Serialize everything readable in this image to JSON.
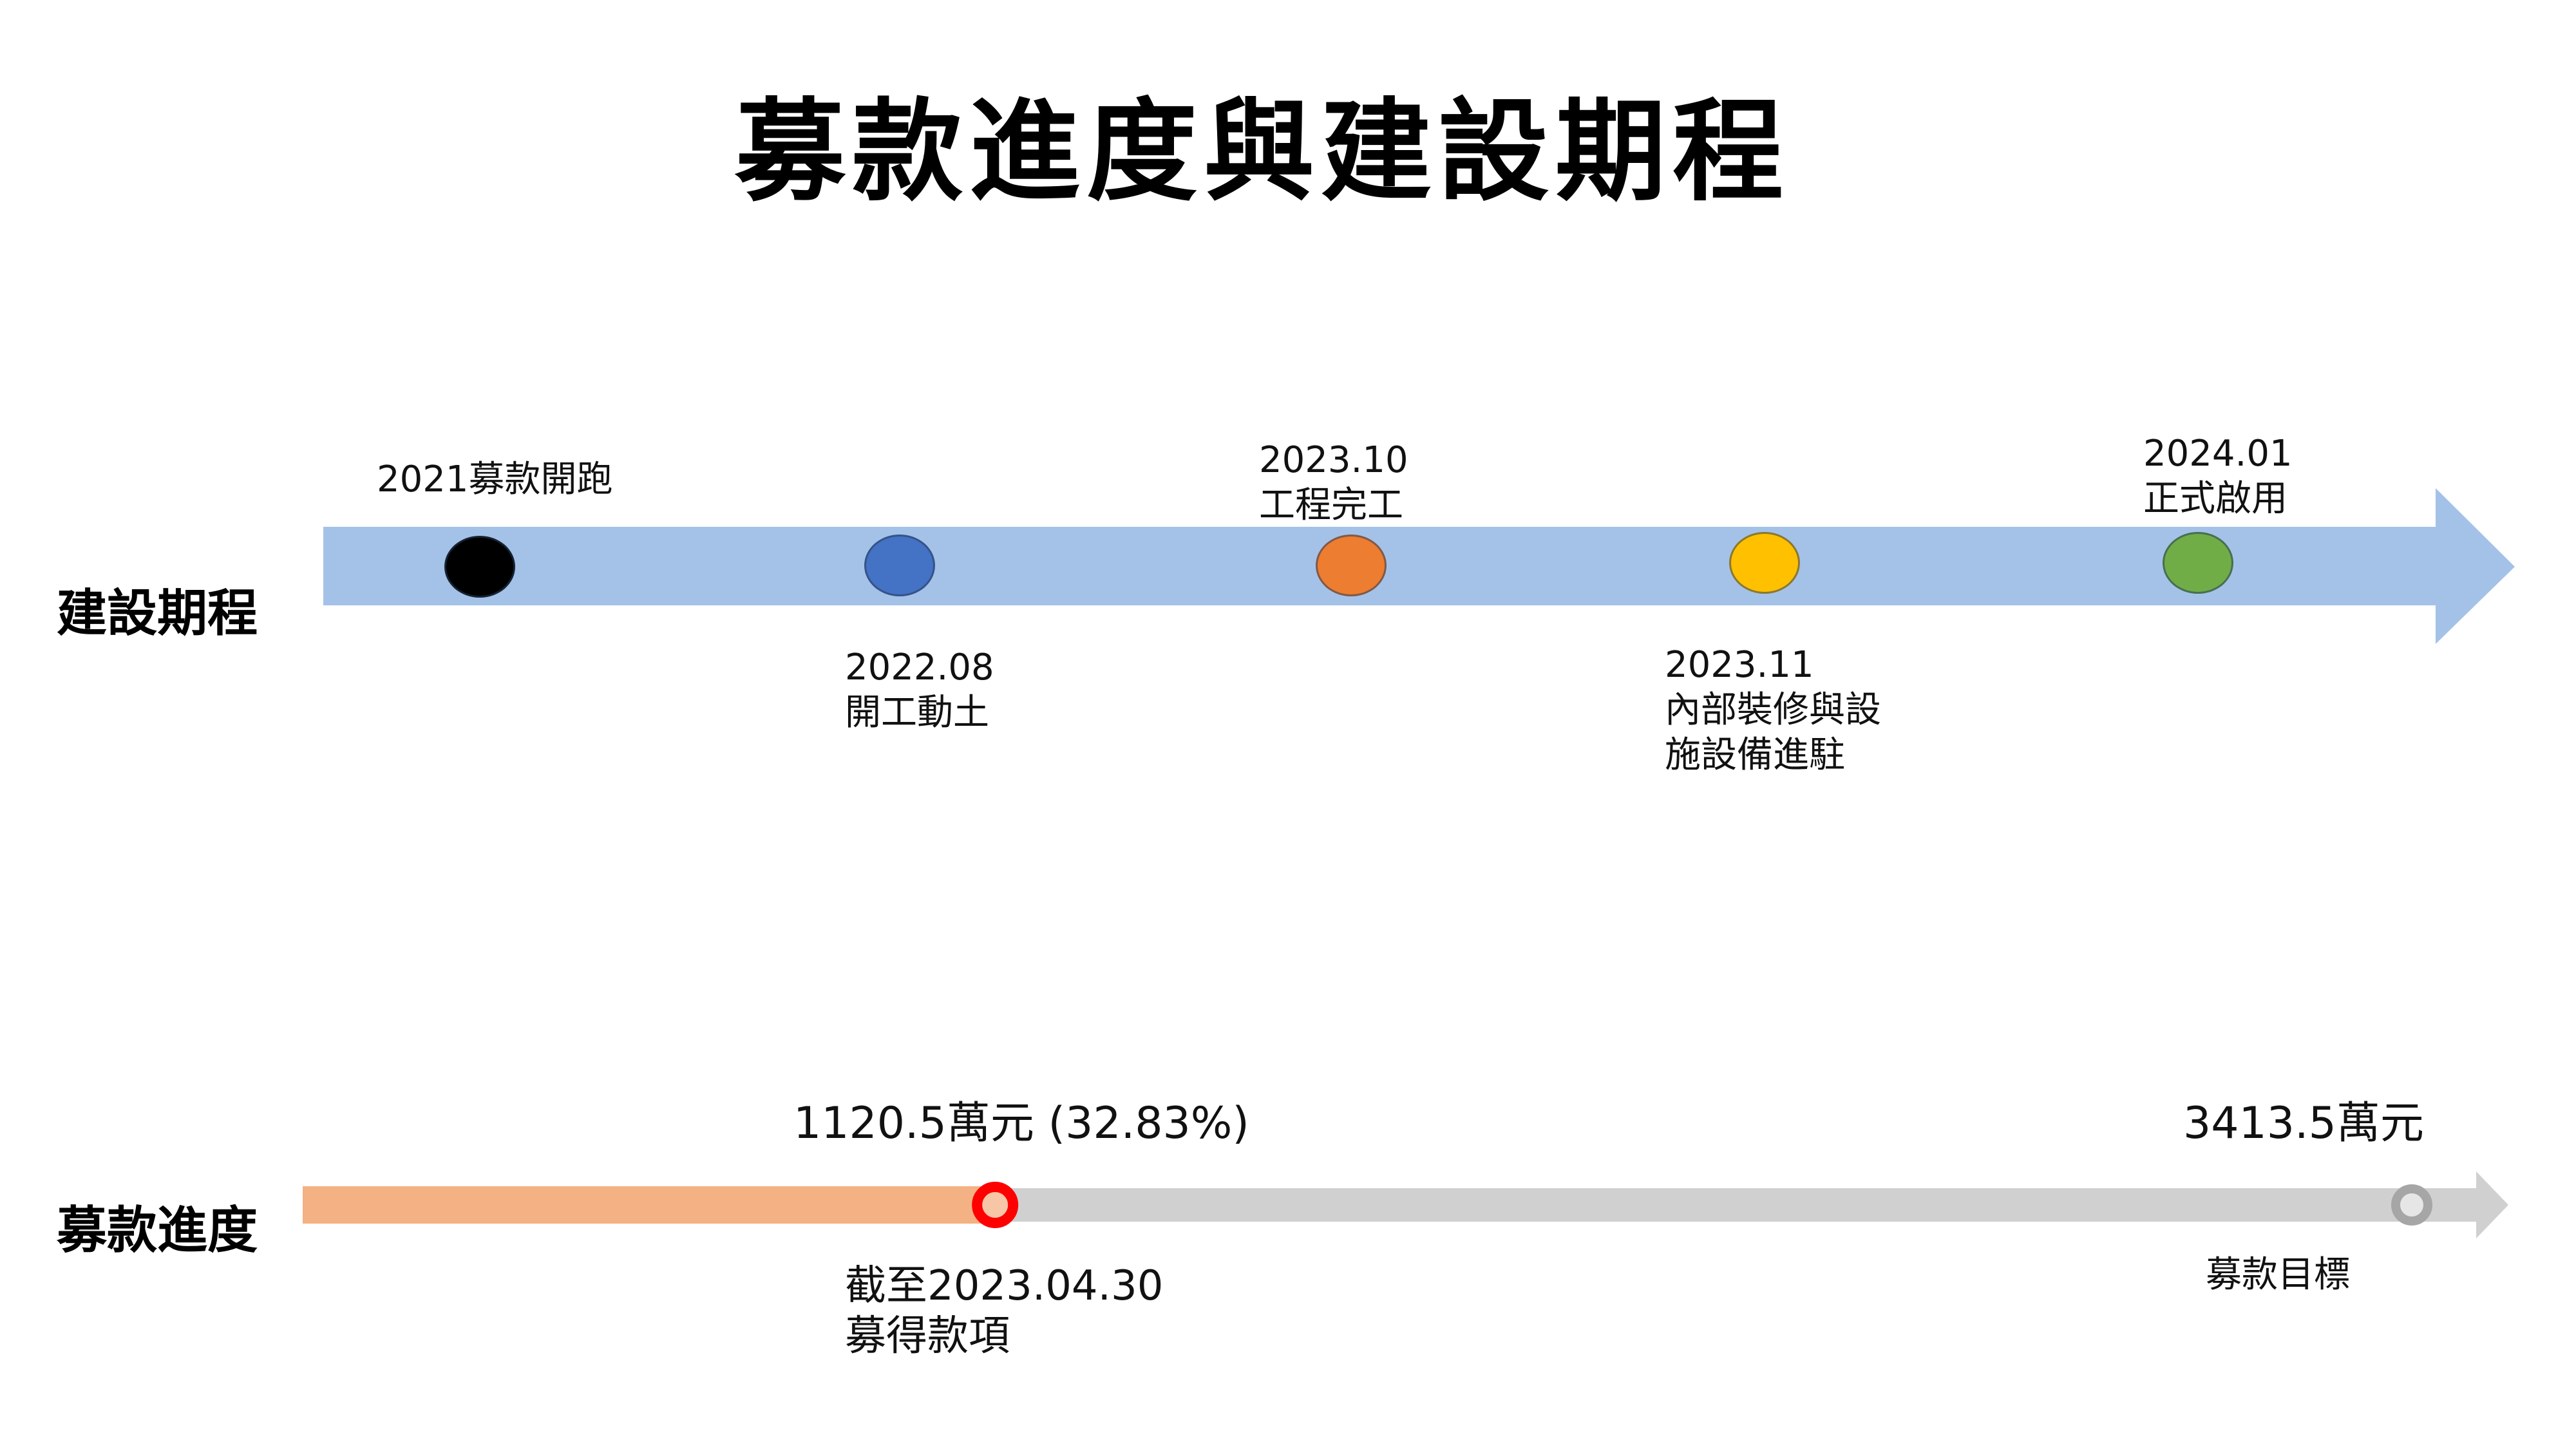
{
  "title": "募款進度與建設期程",
  "schedule": {
    "row_label": "建設期程",
    "milestones": [
      {
        "date": "2021",
        "text": "募款開跑",
        "color": "#000000"
      },
      {
        "date": "2022.08",
        "text": "開工動土",
        "color": "#4472c4"
      },
      {
        "date": "2023.10",
        "text": "工程完工",
        "color": "#ed7d31"
      },
      {
        "date": "2023.11",
        "line1": "內部裝修與設",
        "line2": "施設備進駐",
        "color": "#ffc000"
      },
      {
        "date": "2024.01",
        "text": "正式啟用",
        "color": "#70ad47"
      }
    ]
  },
  "fundraising": {
    "row_label": "募款進度",
    "raised_label": "1120.5萬元 (32.83%)",
    "raised_amount": 1120.5,
    "goal_amount": 3413.5,
    "progress_percent": 32.83,
    "as_of_line1": "截至2023.04.30",
    "as_of_line2": "募得款項",
    "goal_label": "3413.5萬元",
    "goal_caption": "募款目標",
    "colors": {
      "filled": "#f4b183",
      "remaining": "#d0d0d0",
      "marker": "#ff0000",
      "goal_marker": "#a6a6a6"
    }
  }
}
